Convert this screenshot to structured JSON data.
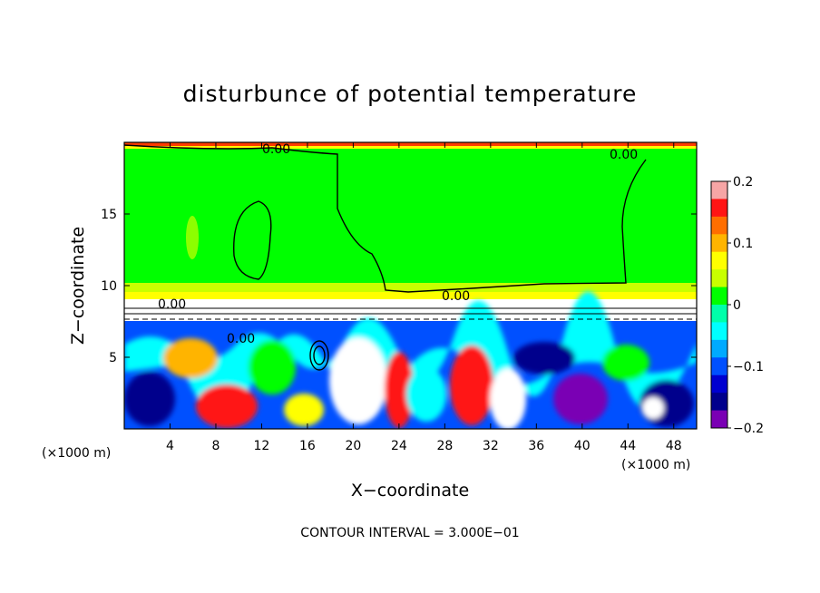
{
  "chart_data": {
    "type": "heatmap",
    "title": "disturbunce of potential temperature",
    "xlabel": "X−coordinate",
    "ylabel": "Z−coordinate",
    "x_unit": "(×1000 m)",
    "y_unit": "(×1000 m)",
    "xlim": [
      0,
      50
    ],
    "ylim": [
      0,
      20
    ],
    "x_ticks": [
      4,
      8,
      12,
      16,
      20,
      24,
      28,
      32,
      36,
      40,
      44,
      48
    ],
    "y_ticks": [
      5,
      10,
      15
    ],
    "contour_label": "0.00",
    "contour_note": "CONTOUR INTERVAL = 3.000E−01",
    "colorbar": {
      "min": -0.2,
      "max": 0.2,
      "tick_values": [
        0.2,
        0.1,
        0,
        -0.1,
        -0.2
      ],
      "tick_labels": [
        "0.2",
        "0.1",
        "0",
        "−0.1",
        "−0.2"
      ],
      "colors": [
        "#f6a5a5",
        "#ff1414",
        "#ff6e00",
        "#ffb400",
        "#ffff00",
        "#c8ff00",
        "#00ff00",
        "#00ffaa",
        "#00ffff",
        "#00aaff",
        "#0050ff",
        "#0000d0",
        "#00008c",
        "#7a00b4"
      ]
    }
  }
}
